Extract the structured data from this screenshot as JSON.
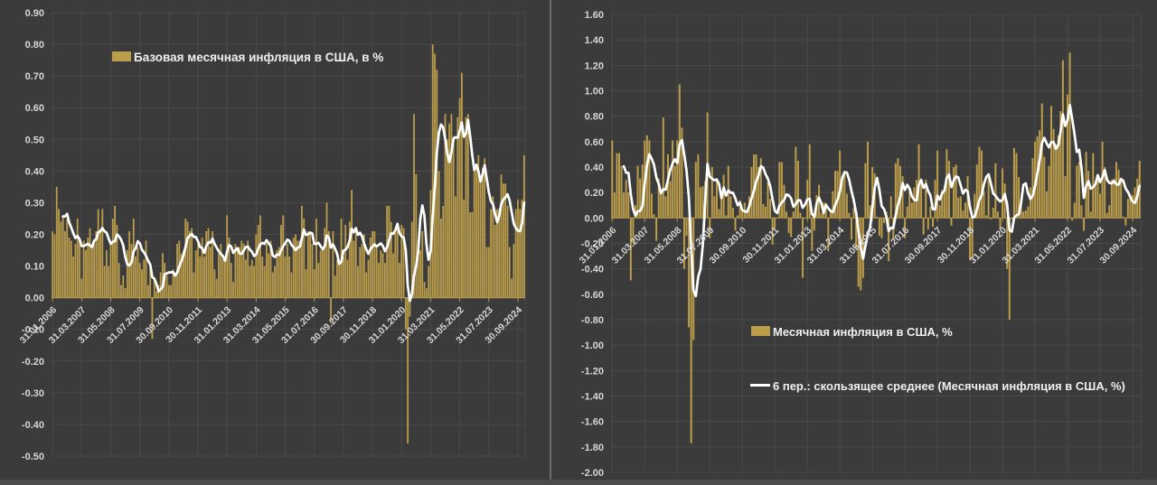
{
  "colors": {
    "background": "#3b3b3b",
    "gridline": "#4a4a4a",
    "bar": "#bb9d4b",
    "ma_line": "#ffffff",
    "zero_axis_line": "#b0974f",
    "tick_text": "#d6d6d6",
    "legend_text": "#efefef",
    "panel_divider": "#6e6e6e"
  },
  "chart_data": [
    {
      "type": "bar",
      "title": "",
      "legend": [
        {
          "label": "Базовая месячная инфляция в США, в %",
          "swatch": "bar"
        }
      ],
      "legend_position": "top-inside",
      "grid": true,
      "x_frequency": "monthly",
      "x_start": "31.01.2006",
      "x_end": "31.12.2024",
      "x_tick_interval_months": 14,
      "x_tick_labels": [
        "31.01.2006",
        "31.03.2007",
        "31.05.2008",
        "31.07.2009",
        "30.09.2010",
        "30.11.2011",
        "31.01.2013",
        "31.03.2014",
        "31.05.2015",
        "31.07.2016",
        "30.09.2017",
        "30.11.2018",
        "31.01.2020",
        "31.03.2021",
        "31.05.2022",
        "31.07.2023",
        "30.09.2024"
      ],
      "ylim": [
        -0.5,
        0.9
      ],
      "ytick_step": 0.1,
      "ytick_labels": [
        "0.90",
        "0.80",
        "0.70",
        "0.60",
        "0.50",
        "0.40",
        "0.30",
        "0.20",
        "0.10",
        "0.00",
        "-0.10",
        "-0.20",
        "-0.30",
        "-0.40",
        "-0.50"
      ],
      "overlay_line": {
        "name": "6-периодное скользящее среднее",
        "window": 6,
        "color": "#ffffff"
      },
      "values": [
        0.21,
        0.2,
        0.35,
        0.28,
        0.24,
        0.26,
        0.21,
        0.25,
        0.19,
        0.18,
        0.13,
        0.17,
        0.25,
        0.19,
        0.06,
        0.18,
        0.15,
        0.19,
        0.22,
        0.16,
        0.18,
        0.21,
        0.28,
        0.21,
        0.28,
        0.1,
        0.15,
        0.1,
        0.18,
        0.25,
        0.29,
        0.23,
        0.11,
        0.04,
        0.07,
        0.03,
        0.15,
        0.21,
        0.17,
        0.25,
        0.13,
        0.16,
        0.11,
        0.09,
        0.12,
        0.18,
        0.04,
        0.09,
        -0.13,
        0.06,
        0.02,
        0.04,
        0.08,
        0.14,
        0.11,
        0.07,
        0.04,
        0.04,
        0.09,
        0.07,
        0.17,
        0.18,
        0.14,
        0.15,
        0.25,
        0.24,
        0.21,
        0.22,
        0.08,
        0.15,
        0.17,
        0.13,
        0.19,
        0.13,
        0.21,
        0.22,
        0.16,
        0.21,
        0.09,
        0.06,
        0.14,
        0.17,
        0.12,
        0.12,
        0.26,
        0.19,
        0.11,
        0.05,
        0.17,
        0.16,
        0.16,
        0.18,
        0.17,
        0.12,
        0.18,
        0.1,
        0.12,
        0.1,
        0.2,
        0.23,
        0.26,
        0.13,
        0.1,
        0.17,
        0.14,
        0.18,
        0.08,
        0.1,
        0.15,
        0.16,
        0.23,
        0.26,
        0.13,
        0.17,
        0.13,
        0.08,
        0.19,
        0.2,
        0.18,
        0.18,
        0.29,
        0.25,
        0.09,
        0.21,
        0.21,
        0.17,
        0.09,
        0.25,
        0.11,
        0.15,
        0.15,
        0.22,
        0.3,
        0.21,
        -0.08,
        0.21,
        0.07,
        0.12,
        0.11,
        0.25,
        0.13,
        0.23,
        0.12,
        0.24,
        0.34,
        0.18,
        0.21,
        0.1,
        0.16,
        0.17,
        0.2,
        0.08,
        0.12,
        0.19,
        0.21,
        0.21,
        0.16,
        0.11,
        0.15,
        0.14,
        0.11,
        0.29,
        0.29,
        0.24,
        0.14,
        0.21,
        0.23,
        0.11,
        0.23,
        0.22,
        -0.1,
        -0.46,
        -0.06,
        0.24,
        0.58,
        0.39,
        0.18,
        0.15,
        0.21,
        0.05,
        0.03,
        0.1,
        0.34,
        0.8,
        0.77,
        0.72,
        0.4,
        0.25,
        0.29,
        0.58,
        0.5,
        0.55,
        0.58,
        0.51,
        0.32,
        0.57,
        0.63,
        0.71,
        0.31,
        0.57,
        0.58,
        0.27,
        0.27,
        0.42,
        0.41,
        0.45,
        0.38,
        0.41,
        0.44,
        0.16,
        0.16,
        0.28,
        0.32,
        0.23,
        0.28,
        0.28,
        0.39,
        0.36,
        0.36,
        0.29,
        0.16,
        0.06,
        0.17,
        0.28,
        0.31,
        0.28,
        0.31,
        0.45
      ]
    },
    {
      "type": "bar",
      "title": "",
      "legend": [
        {
          "label": "Месячная инфляция в США, %",
          "swatch": "bar"
        },
        {
          "label": "6 пер.: скользящее среднее (Месячная инфляция в США, %)",
          "swatch": "line"
        }
      ],
      "legend_position": "bottom-inside",
      "grid": true,
      "x_frequency": "monthly",
      "x_start": "31.01.2006",
      "x_end": "31.12.2024",
      "x_tick_interval_months": 14,
      "x_tick_labels": [
        "31.01.2006",
        "31.03.2007",
        "31.05.2008",
        "31.07.2009",
        "30.09.2010",
        "30.11.2011",
        "31.01.2013",
        "31.03.2014",
        "31.05.2015",
        "31.07.2016",
        "30.09.2017",
        "30.11.2018",
        "31.01.2020",
        "31.03.2021",
        "31.05.2022",
        "31.07.2023",
        "30.09.2024"
      ],
      "ylim": [
        -2.0,
        1.6
      ],
      "ytick_step": 0.2,
      "ytick_labels": [
        "1.60",
        "1.40",
        "1.20",
        "1.00",
        "0.80",
        "0.60",
        "0.40",
        "0.20",
        "0.00",
        "-0.20",
        "-0.40",
        "-0.60",
        "-0.80",
        "-1.00",
        "-1.20",
        "-1.40",
        "-1.60",
        "-1.80",
        "-2.00"
      ],
      "overlay_line": {
        "name": "6 пер.: скользящее среднее (Месячная инфляция в США, %)",
        "window": 6,
        "color": "#ffffff"
      },
      "values": [
        0.61,
        0.2,
        0.51,
        0.51,
        0.41,
        0.2,
        0.3,
        0.2,
        -0.49,
        -0.2,
        0.1,
        0.41,
        0.31,
        0.42,
        0.61,
        0.65,
        0.61,
        0.19,
        0.03,
        -0.18,
        0.31,
        0.21,
        0.79,
        0.17,
        0.5,
        0.29,
        0.61,
        0.41,
        0.61,
        1.05,
        0.71,
        -0.4,
        -0.14,
        -0.86,
        -1.77,
        -0.96,
        0.44,
        0.5,
        0.24,
        0.25,
        0.29,
        0.83,
        -0.16,
        0.4,
        0.17,
        0.29,
        0.07,
        0.17,
        0.34,
        0.02,
        0.41,
        0.17,
        0.08,
        -0.1,
        0.02,
        0.14,
        0.06,
        0.12,
        0.04,
        0.17,
        0.4,
        0.5,
        0.5,
        0.4,
        0.47,
        0.11,
        0.09,
        0.28,
        0.15,
        -0.21,
        -0.08,
        0.0,
        0.44,
        0.44,
        0.26,
        0.05,
        -0.12,
        -0.15,
        0.05,
        0.56,
        0.45,
        0.04,
        -0.47,
        0.0,
        0.3,
        0.58,
        -0.26,
        -0.1,
        0.18,
        0.26,
        0.04,
        0.12,
        0.12,
        -0.26,
        0.05,
        0.21,
        0.37,
        0.37,
        0.53,
        0.33,
        0.35,
        0.19,
        0.04,
        -0.17,
        0.08,
        -0.25,
        -0.54,
        -0.57,
        -0.47,
        0.43,
        0.6,
        0.1,
        0.4,
        0.35,
        0.01,
        -0.14,
        -0.16,
        -0.04,
        0.05,
        -0.34,
        0.17,
        -0.16,
        0.43,
        0.47,
        0.41,
        0.33,
        -0.16,
        0.09,
        0.24,
        0.12,
        0.24,
        0.3,
        0.58,
        0.31,
        -0.13,
        0.3,
        -0.09,
        0.09,
        -0.07,
        0.3,
        0.53,
        0.1,
        0.22,
        0.21,
        0.54,
        0.45,
        -0.06,
        0.4,
        0.42,
        0.16,
        0.17,
        0.06,
        0.12,
        0.33,
        -0.33,
        -0.32,
        0.19,
        0.42,
        0.56,
        0.53,
        0.21,
        0.02,
        0.32,
        -0.01,
        0.08,
        0.43,
        0.05,
        -0.09,
        0.39,
        0.27,
        -0.4,
        -0.8,
        -0.01,
        0.55,
        0.51,
        0.32,
        0.14,
        0.05,
        0.06,
        0.09,
        0.24,
        0.47,
        0.6,
        0.64,
        0.69,
        0.9,
        0.48,
        0.21,
        0.41,
        0.88,
        0.7,
        0.58,
        0.65,
        0.84,
        1.24,
        0.33,
        0.97,
        1.3,
        -0.02,
        0.12,
        0.41,
        0.44,
        0.1,
        -0.1,
        0.52,
        0.37,
        0.05,
        0.51,
        0.25,
        0.32,
        0.19,
        0.6,
        0.4,
        0.04,
        0.1,
        0.3,
        0.31,
        0.44,
        0.38,
        0.31,
        0.01,
        -0.06,
        0.15,
        0.19,
        0.18,
        0.24,
        0.31,
        0.45
      ]
    }
  ]
}
